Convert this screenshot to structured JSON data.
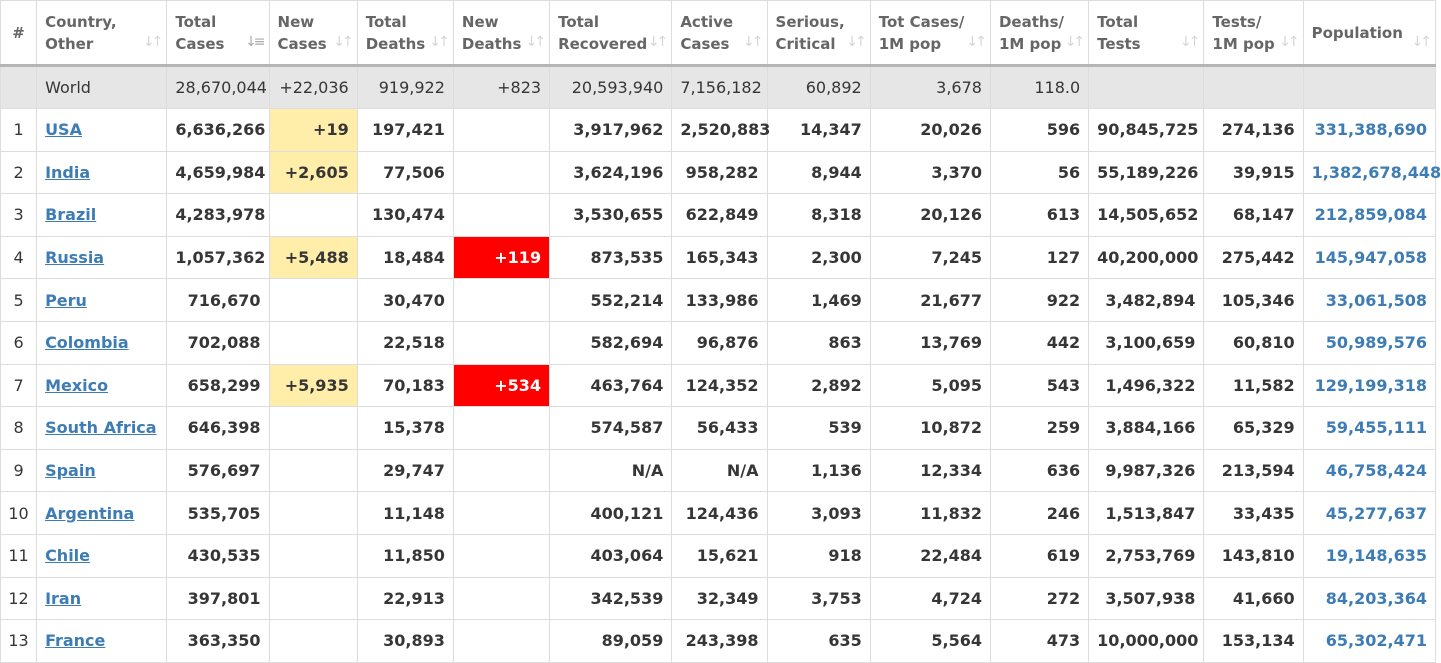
{
  "header": {
    "hash": "#",
    "columns": [
      {
        "l1": "Country,",
        "l2": "Other"
      },
      {
        "l1": "Total",
        "l2": "Cases"
      },
      {
        "l1": "New",
        "l2": "Cases"
      },
      {
        "l1": "Total",
        "l2": "Deaths"
      },
      {
        "l1": "New",
        "l2": "Deaths"
      },
      {
        "l1": "Total",
        "l2": "Recovered"
      },
      {
        "l1": "Active",
        "l2": "Cases"
      },
      {
        "l1": "Serious,",
        "l2": "Critical"
      },
      {
        "l1": "Tot Cases/",
        "l2": "1M pop"
      },
      {
        "l1": "Deaths/",
        "l2": "1M pop"
      },
      {
        "l1": "Total",
        "l2": "Tests"
      },
      {
        "l1": "Tests/",
        "l2": "1M pop"
      },
      {
        "l1": "",
        "l2": "Population"
      }
    ]
  },
  "world": {
    "name": "World",
    "total_cases": "28,670,044",
    "new_cases": "+22,036",
    "total_deaths": "919,922",
    "new_deaths": "+823",
    "total_recovered": "20,593,940",
    "active_cases": "7,156,182",
    "serious_critical": "60,892",
    "tot_cases_1m": "3,678",
    "deaths_1m": "118.0",
    "total_tests": "",
    "tests_1m": "",
    "population": ""
  },
  "rows": [
    {
      "idx": "1",
      "country": "USA",
      "total_cases": "6,636,266",
      "new_cases": "+19",
      "total_deaths": "197,421",
      "new_deaths": "",
      "total_recovered": "3,917,962",
      "active_cases": "2,520,883",
      "serious_critical": "14,347",
      "tot_cases_1m": "20,026",
      "deaths_1m": "596",
      "total_tests": "90,845,725",
      "tests_1m": "274,136",
      "population": "331,388,690"
    },
    {
      "idx": "2",
      "country": "India",
      "total_cases": "4,659,984",
      "new_cases": "+2,605",
      "total_deaths": "77,506",
      "new_deaths": "",
      "total_recovered": "3,624,196",
      "active_cases": "958,282",
      "serious_critical": "8,944",
      "tot_cases_1m": "3,370",
      "deaths_1m": "56",
      "total_tests": "55,189,226",
      "tests_1m": "39,915",
      "population": "1,382,678,448"
    },
    {
      "idx": "3",
      "country": "Brazil",
      "total_cases": "4,283,978",
      "new_cases": "",
      "total_deaths": "130,474",
      "new_deaths": "",
      "total_recovered": "3,530,655",
      "active_cases": "622,849",
      "serious_critical": "8,318",
      "tot_cases_1m": "20,126",
      "deaths_1m": "613",
      "total_tests": "14,505,652",
      "tests_1m": "68,147",
      "population": "212,859,084"
    },
    {
      "idx": "4",
      "country": "Russia",
      "total_cases": "1,057,362",
      "new_cases": "+5,488",
      "total_deaths": "18,484",
      "new_deaths": "+119",
      "total_recovered": "873,535",
      "active_cases": "165,343",
      "serious_critical": "2,300",
      "tot_cases_1m": "7,245",
      "deaths_1m": "127",
      "total_tests": "40,200,000",
      "tests_1m": "275,442",
      "population": "145,947,058"
    },
    {
      "idx": "5",
      "country": "Peru",
      "total_cases": "716,670",
      "new_cases": "",
      "total_deaths": "30,470",
      "new_deaths": "",
      "total_recovered": "552,214",
      "active_cases": "133,986",
      "serious_critical": "1,469",
      "tot_cases_1m": "21,677",
      "deaths_1m": "922",
      "total_tests": "3,482,894",
      "tests_1m": "105,346",
      "population": "33,061,508"
    },
    {
      "idx": "6",
      "country": "Colombia",
      "total_cases": "702,088",
      "new_cases": "",
      "total_deaths": "22,518",
      "new_deaths": "",
      "total_recovered": "582,694",
      "active_cases": "96,876",
      "serious_critical": "863",
      "tot_cases_1m": "13,769",
      "deaths_1m": "442",
      "total_tests": "3,100,659",
      "tests_1m": "60,810",
      "population": "50,989,576"
    },
    {
      "idx": "7",
      "country": "Mexico",
      "total_cases": "658,299",
      "new_cases": "+5,935",
      "total_deaths": "70,183",
      "new_deaths": "+534",
      "total_recovered": "463,764",
      "active_cases": "124,352",
      "serious_critical": "2,892",
      "tot_cases_1m": "5,095",
      "deaths_1m": "543",
      "total_tests": "1,496,322",
      "tests_1m": "11,582",
      "population": "129,199,318"
    },
    {
      "idx": "8",
      "country": "South Africa",
      "total_cases": "646,398",
      "new_cases": "",
      "total_deaths": "15,378",
      "new_deaths": "",
      "total_recovered": "574,587",
      "active_cases": "56,433",
      "serious_critical": "539",
      "tot_cases_1m": "10,872",
      "deaths_1m": "259",
      "total_tests": "3,884,166",
      "tests_1m": "65,329",
      "population": "59,455,111"
    },
    {
      "idx": "9",
      "country": "Spain",
      "total_cases": "576,697",
      "new_cases": "",
      "total_deaths": "29,747",
      "new_deaths": "",
      "total_recovered": "N/A",
      "active_cases": "N/A",
      "serious_critical": "1,136",
      "tot_cases_1m": "12,334",
      "deaths_1m": "636",
      "total_tests": "9,987,326",
      "tests_1m": "213,594",
      "population": "46,758,424"
    },
    {
      "idx": "10",
      "country": "Argentina",
      "total_cases": "535,705",
      "new_cases": "",
      "total_deaths": "11,148",
      "new_deaths": "",
      "total_recovered": "400,121",
      "active_cases": "124,436",
      "serious_critical": "3,093",
      "tot_cases_1m": "11,832",
      "deaths_1m": "246",
      "total_tests": "1,513,847",
      "tests_1m": "33,435",
      "population": "45,277,637"
    },
    {
      "idx": "11",
      "country": "Chile",
      "total_cases": "430,535",
      "new_cases": "",
      "total_deaths": "11,850",
      "new_deaths": "",
      "total_recovered": "403,064",
      "active_cases": "15,621",
      "serious_critical": "918",
      "tot_cases_1m": "22,484",
      "deaths_1m": "619",
      "total_tests": "2,753,769",
      "tests_1m": "143,810",
      "population": "19,148,635"
    },
    {
      "idx": "12",
      "country": "Iran",
      "total_cases": "397,801",
      "new_cases": "",
      "total_deaths": "22,913",
      "new_deaths": "",
      "total_recovered": "342,539",
      "active_cases": "32,349",
      "serious_critical": "3,753",
      "tot_cases_1m": "4,724",
      "deaths_1m": "272",
      "total_tests": "3,507,938",
      "tests_1m": "41,660",
      "population": "84,203,364"
    },
    {
      "idx": "13",
      "country": "France",
      "total_cases": "363,350",
      "new_cases": "",
      "total_deaths": "30,893",
      "new_deaths": "",
      "total_recovered": "89,059",
      "active_cases": "243,398",
      "serious_critical": "635",
      "tot_cases_1m": "5,564",
      "deaths_1m": "473",
      "total_tests": "10,000,000",
      "tests_1m": "153,134",
      "population": "65,302,471"
    }
  ],
  "colors": {
    "new_cases_highlight": "#ffeeaa",
    "new_deaths_highlight": "#ff0000",
    "link": "#3d7cb4",
    "world_row_bg": "#e6e6e6"
  },
  "icons": {
    "sort": "sort-arrows-icon",
    "sorted": "sort-desc-icon"
  }
}
